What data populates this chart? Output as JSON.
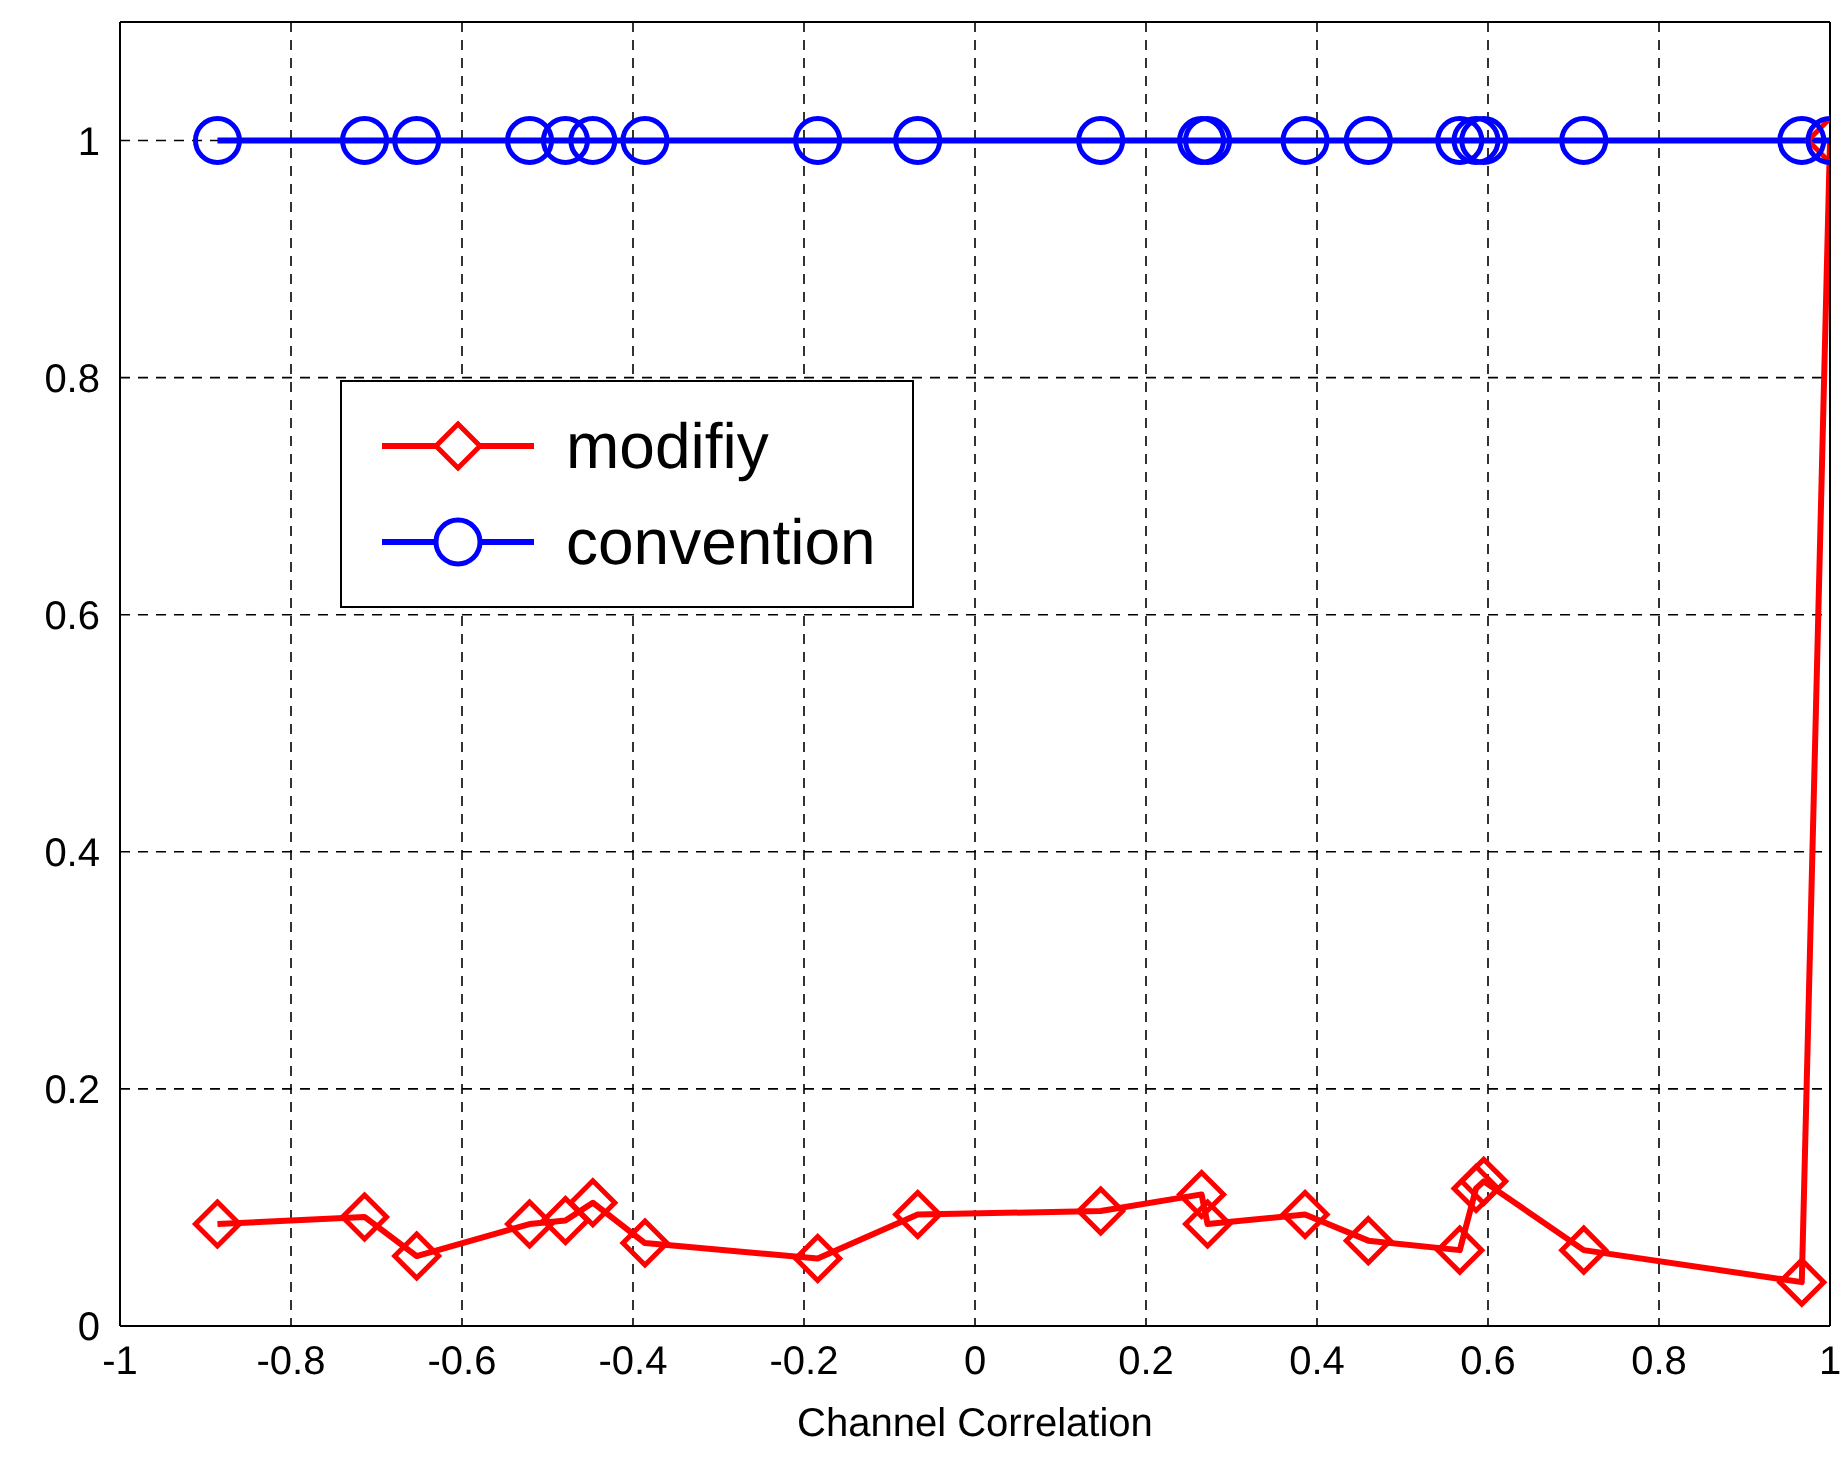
{
  "chart_data": {
    "type": "line",
    "xlabel": "Channel Correlation",
    "x": [
      -0.886,
      -0.714,
      -0.653,
      -0.521,
      -0.479,
      -0.447,
      -0.386,
      -0.184,
      -0.067,
      0.147,
      0.265,
      0.272,
      0.386,
      0.46,
      0.567,
      0.586,
      0.595,
      0.712,
      0.967,
      1.0
    ],
    "series": [
      {
        "name": "modifiy",
        "color": "#ff0000",
        "marker": "diamond",
        "values": [
          0.086,
          0.092,
          0.059,
          0.086,
          0.089,
          0.104,
          0.07,
          0.057,
          0.094,
          0.097,
          0.111,
          0.086,
          0.094,
          0.072,
          0.064,
          0.116,
          0.122,
          0.064,
          0.037,
          1.0
        ]
      },
      {
        "name": "convention",
        "color": "#0000ff",
        "marker": "circle",
        "values": [
          1,
          1,
          1,
          1,
          1,
          1,
          1,
          1,
          1,
          1,
          1,
          1,
          1,
          1,
          1,
          1,
          1,
          1,
          1,
          1
        ]
      }
    ],
    "xlim": [
      -1,
      1
    ],
    "xticks": [
      -1,
      -0.8,
      -0.6,
      -0.4,
      -0.2,
      0,
      0.2,
      0.4,
      0.6,
      0.8,
      1
    ],
    "ylim": [
      0,
      1.1
    ],
    "yticks": [
      0,
      0.2,
      0.4,
      0.6,
      0.8,
      1
    ],
    "grid": true,
    "legend": "top left",
    "line_style": "solid"
  }
}
